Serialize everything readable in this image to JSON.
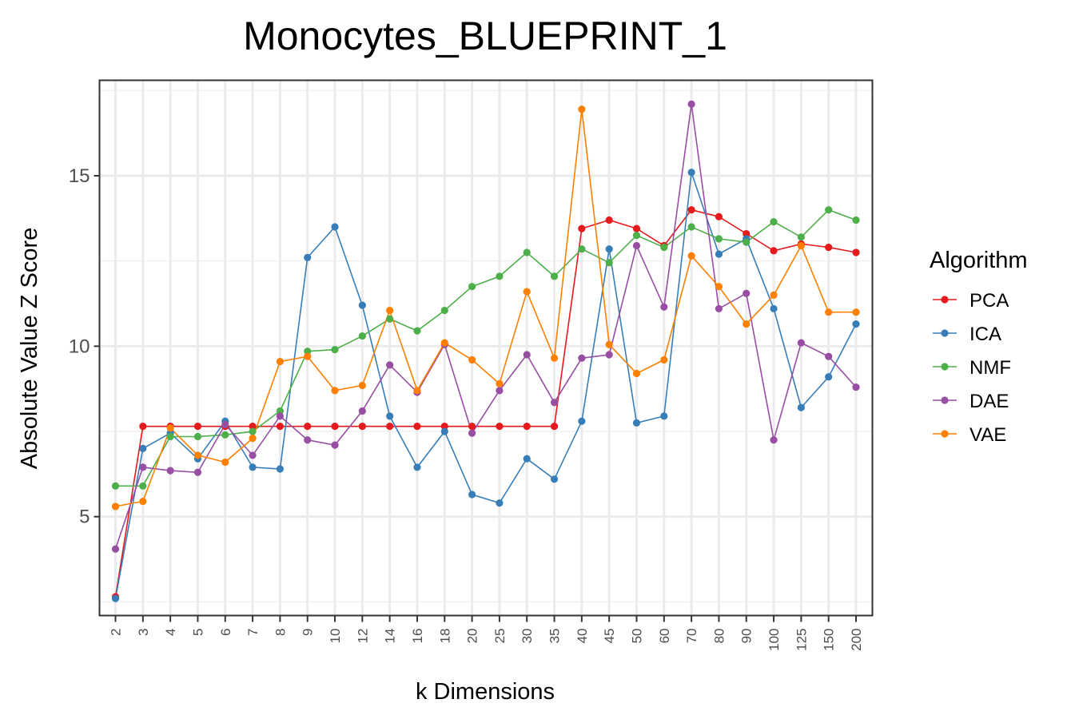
{
  "chart_data": {
    "type": "line",
    "title": "Monocytes_BLUEPRINT_1",
    "xlabel": "k Dimensions",
    "ylabel": "Absolute Value Z Score",
    "categories": [
      "2",
      "3",
      "4",
      "5",
      "6",
      "7",
      "8",
      "9",
      "10",
      "12",
      "14",
      "16",
      "18",
      "20",
      "25",
      "30",
      "35",
      "40",
      "45",
      "50",
      "60",
      "70",
      "80",
      "90",
      "100",
      "125",
      "150",
      "200"
    ],
    "yticks": [
      "5",
      "10",
      "15"
    ],
    "ylim": [
      2.1,
      17.8
    ],
    "grid": true,
    "legend_title": "Algorithm",
    "legend_position": "right",
    "series": [
      {
        "name": "PCA",
        "color": "#e41a1c",
        "values": [
          2.65,
          7.65,
          7.65,
          7.65,
          7.65,
          7.65,
          7.65,
          7.65,
          7.65,
          7.65,
          7.65,
          7.65,
          7.65,
          7.65,
          7.65,
          7.65,
          7.65,
          13.45,
          13.7,
          13.45,
          12.95,
          14.0,
          13.8,
          13.3,
          12.8,
          13.0,
          12.9,
          12.75
        ]
      },
      {
        "name": "ICA",
        "color": "#377eb8",
        "values": [
          2.6,
          7.0,
          7.45,
          6.7,
          7.8,
          6.45,
          6.4,
          12.6,
          13.5,
          11.2,
          7.95,
          6.45,
          7.5,
          5.65,
          5.4,
          6.7,
          6.1,
          7.8,
          12.85,
          7.75,
          7.95,
          15.1,
          12.7,
          13.15,
          11.1,
          8.2,
          9.1,
          10.65
        ]
      },
      {
        "name": "NMF",
        "color": "#4daf4a",
        "values": [
          5.9,
          5.9,
          7.35,
          7.35,
          7.4,
          7.5,
          8.1,
          9.85,
          9.9,
          10.3,
          10.8,
          10.45,
          11.05,
          11.75,
          12.05,
          12.75,
          12.05,
          12.85,
          12.45,
          13.25,
          12.9,
          13.5,
          13.15,
          13.05,
          13.65,
          13.2,
          14.0,
          13.7
        ]
      },
      {
        "name": "DAE",
        "color": "#984ea3",
        "values": [
          4.05,
          6.45,
          6.35,
          6.3,
          7.7,
          6.8,
          7.95,
          7.25,
          7.1,
          8.1,
          9.45,
          8.65,
          10.05,
          7.45,
          8.7,
          9.75,
          8.35,
          9.65,
          9.75,
          12.95,
          11.15,
          17.1,
          11.1,
          11.55,
          7.25,
          10.1,
          9.7,
          8.8
        ]
      },
      {
        "name": "VAE",
        "color": "#ff7f00",
        "values": [
          5.3,
          5.45,
          7.6,
          6.8,
          6.6,
          7.3,
          9.55,
          9.7,
          8.7,
          8.85,
          11.05,
          8.7,
          10.1,
          9.6,
          8.9,
          11.6,
          9.65,
          16.95,
          10.05,
          9.2,
          9.6,
          12.65,
          11.75,
          10.65,
          11.5,
          12.95,
          11.0,
          11.0
        ]
      }
    ]
  }
}
